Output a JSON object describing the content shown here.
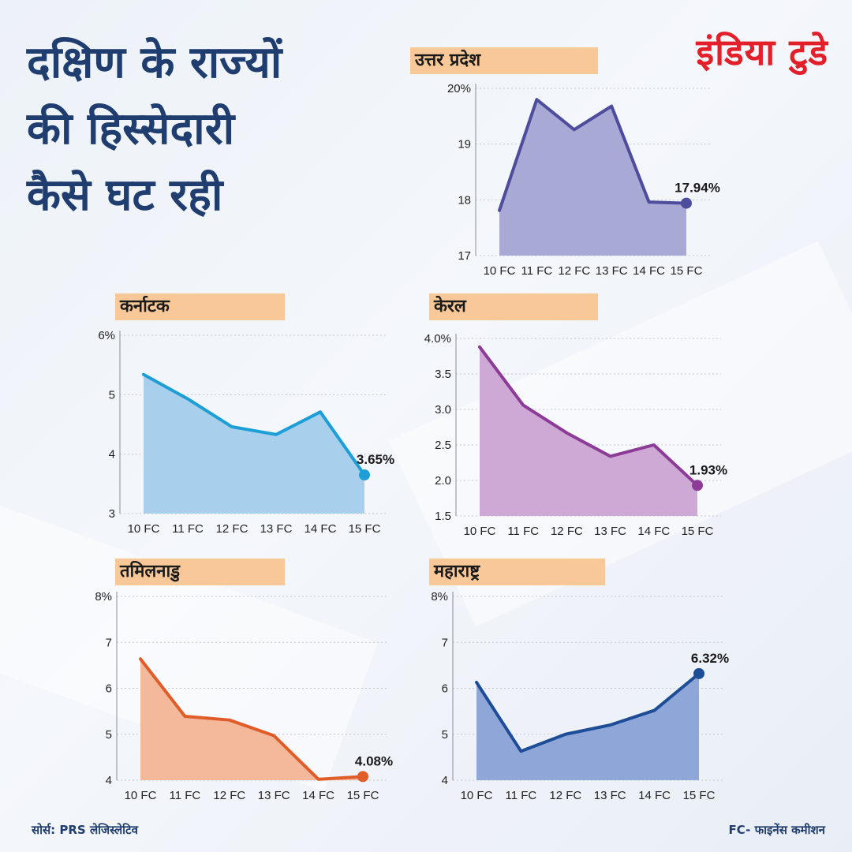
{
  "header": {
    "title_lines": [
      "दक्षिण के राज्यों",
      "की हिस्सेदारी",
      "कैसे घट रही"
    ],
    "logo": "इंडिया टुडे"
  },
  "footer": {
    "source": "सोर्स: PRS लेजिस्लेटिव",
    "note": "FC- फाइनेंस कमीशन"
  },
  "chart_data": [
    {
      "type": "area",
      "title": "उत्तर प्रदेश",
      "categories": [
        "10 FC",
        "11 FC",
        "12 FC",
        "13 FC",
        "14 FC",
        "15 FC"
      ],
      "values": [
        17.81,
        19.8,
        19.26,
        19.68,
        17.96,
        17.94
      ],
      "ylim": [
        17,
        20
      ],
      "yticks": [
        17,
        18,
        19,
        20
      ],
      "ytick_labels": [
        "17",
        "18",
        "19",
        "20%"
      ],
      "end_label": "17.94%",
      "line_color": "#4e4c9c",
      "fill_color": "#a9a9d5",
      "grid": true
    },
    {
      "type": "area",
      "title": "कर्नाटक",
      "categories": [
        "10 FC",
        "11 FC",
        "12 FC",
        "13 FC",
        "14 FC",
        "15 FC"
      ],
      "values": [
        5.34,
        4.93,
        4.46,
        4.33,
        4.71,
        3.65
      ],
      "ylim": [
        3,
        6
      ],
      "yticks": [
        3,
        4,
        5,
        6
      ],
      "ytick_labels": [
        "3",
        "4",
        "5",
        "6%"
      ],
      "end_label": "3.65%",
      "line_color": "#1e9ed6",
      "fill_color": "#a8d0ec",
      "grid": true
    },
    {
      "type": "area",
      "title": "केरल",
      "categories": [
        "10 FC",
        "11 FC",
        "12 FC",
        "13 FC",
        "14 FC",
        "15 FC"
      ],
      "values": [
        3.88,
        3.06,
        2.67,
        2.34,
        2.5,
        1.93
      ],
      "ylim": [
        1.5,
        4.0
      ],
      "yticks": [
        1.5,
        2.0,
        2.5,
        3.0,
        3.5,
        4.0
      ],
      "ytick_labels": [
        "1.5",
        "2.0",
        "2.5",
        "3.0",
        "3.5",
        "4.0%"
      ],
      "end_label": "1.93%",
      "line_color": "#8c3b97",
      "fill_color": "#cfa9d6",
      "grid": true
    },
    {
      "type": "area",
      "title": "तमिलनाडु",
      "categories": [
        "10 FC",
        "11 FC",
        "12 FC",
        "13 FC",
        "14 FC",
        "15 FC"
      ],
      "values": [
        6.64,
        5.39,
        5.31,
        4.97,
        4.02,
        4.08
      ],
      "ylim": [
        4,
        8
      ],
      "yticks": [
        4,
        5,
        6,
        7,
        8
      ],
      "ytick_labels": [
        "4",
        "5",
        "6",
        "7",
        "8%"
      ],
      "end_label": "4.08%",
      "line_color": "#e05d2a",
      "fill_color": "#f4b99a",
      "grid": true
    },
    {
      "type": "area",
      "title": "महाराष्ट्र",
      "categories": [
        "10 FC",
        "11 FC",
        "12 FC",
        "13 FC",
        "14 FC",
        "15 FC"
      ],
      "values": [
        6.13,
        4.63,
        5.0,
        5.2,
        5.52,
        6.32
      ],
      "ylim": [
        4,
        8
      ],
      "yticks": [
        4,
        5,
        6,
        7,
        8
      ],
      "ytick_labels": [
        "4",
        "5",
        "6",
        "7",
        "8%"
      ],
      "end_label": "6.32%",
      "line_color": "#1e4d97",
      "fill_color": "#8fa6d9",
      "grid": true
    }
  ]
}
